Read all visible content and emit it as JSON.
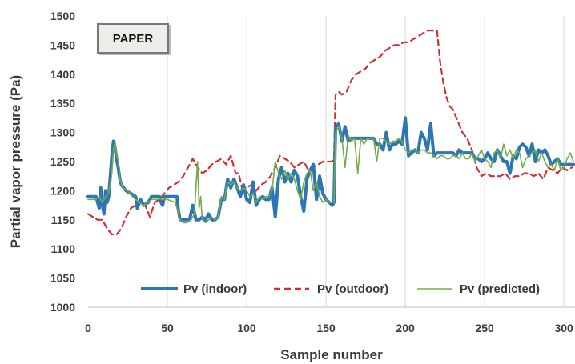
{
  "chart_data": {
    "type": "line",
    "title": "",
    "annotation": "PAPER",
    "xlabel": "Sample number",
    "ylabel": "Partial vapor pressure (Pa)",
    "xlim": [
      0,
      307
    ],
    "ylim": [
      1000,
      1500
    ],
    "xticks": [
      "0",
      "50",
      "100",
      "150",
      "200",
      "250",
      "300"
    ],
    "yticks": [
      "1000",
      "1050",
      "1100",
      "1150",
      "1200",
      "1250",
      "1300",
      "1350",
      "1400",
      "1450",
      "1500"
    ],
    "grid": "vertical",
    "legend": "bottom",
    "series": [
      {
        "name": "Pv (indoor)",
        "color": "#2e75b6",
        "style": "solid-thick",
        "x": [
          0,
          5,
          7,
          8,
          9,
          10,
          11,
          12,
          13,
          14,
          15,
          16,
          17,
          18,
          19,
          20,
          21,
          24,
          27,
          30,
          31,
          33,
          35,
          38,
          40,
          45,
          46,
          47,
          48,
          50,
          55,
          56,
          57,
          58,
          60,
          62,
          64,
          66,
          68,
          70,
          72,
          74,
          76,
          78,
          80,
          82,
          84,
          86,
          88,
          90,
          92,
          94,
          96,
          98,
          100,
          102,
          104,
          106,
          108,
          110,
          112,
          114,
          116,
          118,
          120,
          122,
          124,
          126,
          128,
          130,
          132,
          134,
          136,
          138,
          140,
          142,
          144,
          146,
          148,
          150,
          152,
          154,
          155,
          156,
          158,
          160,
          162,
          164,
          166,
          168,
          170,
          172,
          174,
          176,
          178,
          180,
          182,
          184,
          186,
          188,
          190,
          192,
          194,
          196,
          198,
          200,
          202,
          204,
          206,
          208,
          210,
          212,
          214,
          216,
          218,
          220,
          222,
          224,
          226,
          228,
          230,
          232,
          234,
          236,
          238,
          240,
          242,
          244,
          246,
          248,
          250,
          252,
          254,
          256,
          258,
          260,
          262,
          264,
          266,
          268,
          270,
          272,
          274,
          276,
          278,
          280,
          282,
          284,
          286,
          288,
          290,
          292,
          294,
          296,
          298,
          300,
          302,
          304,
          306
        ],
        "values": [
          1190,
          1190,
          1170,
          1205,
          1175,
          1160,
          1200,
          1180,
          1190,
          1225,
          1260,
          1285,
          1275,
          1255,
          1240,
          1220,
          1210,
          1200,
          1195,
          1190,
          1170,
          1185,
          1175,
          1180,
          1190,
          1190,
          1180,
          1175,
          1190,
          1190,
          1190,
          1190,
          1165,
          1150,
          1150,
          1150,
          1150,
          1175,
          1150,
          1150,
          1155,
          1150,
          1160,
          1150,
          1150,
          1155,
          1185,
          1185,
          1220,
          1205,
          1220,
          1205,
          1190,
          1210,
          1185,
          1180,
          1215,
          1175,
          1185,
          1190,
          1185,
          1185,
          1205,
          1155,
          1220,
          1240,
          1215,
          1230,
          1215,
          1235,
          1225,
          1190,
          1165,
          1220,
          1235,
          1245,
          1185,
          1225,
          1195,
          1185,
          1180,
          1175,
          1180,
          1310,
          1315,
          1285,
          1310,
          1285,
          1290,
          1290,
          1290,
          1290,
          1290,
          1290,
          1290,
          1290,
          1280,
          1280,
          1270,
          1300,
          1270,
          1280,
          1280,
          1285,
          1280,
          1325,
          1260,
          1265,
          1270,
          1265,
          1300,
          1290,
          1270,
          1315,
          1260,
          1265,
          1265,
          1265,
          1265,
          1265,
          1265,
          1260,
          1270,
          1265,
          1265,
          1265,
          1265,
          1255,
          1255,
          1250,
          1255,
          1265,
          1255,
          1250,
          1270,
          1260,
          1250,
          1250,
          1230,
          1260,
          1255,
          1275,
          1280,
          1275,
          1260,
          1280,
          1250,
          1270,
          1265,
          1270,
          1260,
          1245,
          1250,
          1255,
          1245,
          1245,
          1245,
          1245,
          1245
        ]
      },
      {
        "name": "Pv (outdoor)",
        "color": "#d32f2f",
        "style": "dashed",
        "x": [
          0,
          3,
          6,
          9,
          12,
          15,
          18,
          21,
          24,
          27,
          30,
          33,
          36,
          39,
          42,
          45,
          48,
          51,
          54,
          57,
          60,
          63,
          66,
          69,
          72,
          75,
          78,
          81,
          84,
          87,
          90,
          93,
          95,
          97,
          100,
          103,
          106,
          109,
          112,
          115,
          118,
          121,
          124,
          127,
          130,
          133,
          136,
          139,
          142,
          145,
          148,
          151,
          154,
          155,
          156,
          158,
          160,
          163,
          166,
          169,
          172,
          175,
          178,
          181,
          184,
          187,
          190,
          193,
          196,
          199,
          202,
          205,
          208,
          211,
          214,
          217,
          220,
          222,
          224,
          226,
          228,
          230,
          233,
          236,
          239,
          242,
          245,
          248,
          251,
          254,
          257,
          260,
          263,
          266,
          269,
          272,
          275,
          278,
          281,
          284,
          287,
          290,
          293,
          296,
          299,
          302,
          305
        ],
        "values": [
          1160,
          1155,
          1150,
          1150,
          1135,
          1125,
          1125,
          1135,
          1155,
          1170,
          1175,
          1185,
          1175,
          1155,
          1180,
          1185,
          1195,
          1205,
          1210,
          1215,
          1225,
          1240,
          1255,
          1240,
          1230,
          1235,
          1245,
          1250,
          1255,
          1245,
          1260,
          1230,
          1230,
          1205,
          1205,
          1210,
          1200,
          1210,
          1215,
          1225,
          1240,
          1260,
          1255,
          1250,
          1240,
          1245,
          1250,
          1235,
          1240,
          1245,
          1250,
          1250,
          1250,
          1255,
          1365,
          1370,
          1365,
          1370,
          1390,
          1400,
          1405,
          1410,
          1420,
          1425,
          1430,
          1440,
          1445,
          1450,
          1450,
          1455,
          1455,
          1460,
          1465,
          1470,
          1475,
          1475,
          1475,
          1420,
          1385,
          1360,
          1345,
          1340,
          1320,
          1300,
          1290,
          1270,
          1240,
          1225,
          1230,
          1225,
          1225,
          1225,
          1230,
          1220,
          1225,
          1225,
          1230,
          1230,
          1225,
          1230,
          1220,
          1240,
          1235,
          1230,
          1240,
          1235,
          1240
        ]
      },
      {
        "name": "Pv (predicted)",
        "color": "#70ad47",
        "style": "solid-thin",
        "x": [
          0,
          5,
          7,
          9,
          11,
          13,
          15,
          16,
          17,
          18,
          19,
          20,
          22,
          25,
          28,
          30,
          32,
          35,
          38,
          40,
          45,
          50,
          55,
          58,
          60,
          62,
          65,
          67,
          69,
          70,
          71,
          72,
          74,
          76,
          78,
          80,
          82,
          84,
          86,
          88,
          90,
          92,
          94,
          96,
          98,
          100,
          102,
          104,
          106,
          108,
          110,
          112,
          114,
          116,
          118,
          120,
          122,
          124,
          126,
          128,
          130,
          132,
          134,
          136,
          138,
          140,
          142,
          144,
          146,
          148,
          150,
          152,
          154,
          155,
          156,
          158,
          160,
          162,
          164,
          166,
          168,
          170,
          172,
          174,
          176,
          178,
          180,
          182,
          184,
          186,
          188,
          190,
          192,
          194,
          196,
          198,
          200,
          202,
          204,
          206,
          208,
          210,
          212,
          214,
          216,
          218,
          220,
          222,
          224,
          226,
          228,
          230,
          232,
          234,
          236,
          238,
          240,
          242,
          244,
          246,
          248,
          250,
          252,
          254,
          256,
          258,
          260,
          262,
          264,
          266,
          268,
          270,
          272,
          274,
          276,
          278,
          280,
          282,
          284,
          286,
          288,
          290,
          292,
          294,
          296,
          298,
          300,
          302,
          304,
          306
        ],
        "values": [
          1185,
          1185,
          1190,
          1180,
          1190,
          1195,
          1230,
          1270,
          1285,
          1265,
          1250,
          1220,
          1205,
          1200,
          1190,
          1185,
          1180,
          1175,
          1180,
          1185,
          1185,
          1185,
          1180,
          1150,
          1145,
          1145,
          1150,
          1160,
          1250,
          1170,
          1190,
          1150,
          1145,
          1150,
          1155,
          1150,
          1155,
          1190,
          1185,
          1215,
          1210,
          1215,
          1205,
          1200,
          1205,
          1200,
          1190,
          1195,
          1180,
          1190,
          1185,
          1190,
          1190,
          1200,
          1250,
          1230,
          1220,
          1235,
          1220,
          1230,
          1220,
          1200,
          1185,
          1215,
          1230,
          1235,
          1200,
          1215,
          1190,
          1180,
          1185,
          1180,
          1180,
          1180,
          1300,
          1310,
          1290,
          1240,
          1295,
          1285,
          1290,
          1230,
          1290,
          1280,
          1290,
          1290,
          1290,
          1250,
          1290,
          1290,
          1285,
          1280,
          1285,
          1285,
          1290,
          1285,
          1270,
          1265,
          1270,
          1270,
          1265,
          1270,
          1270,
          1265,
          1265,
          1260,
          1255,
          1260,
          1260,
          1255,
          1255,
          1260,
          1260,
          1255,
          1265,
          1255,
          1255,
          1265,
          1250,
          1260,
          1270,
          1255,
          1250,
          1240,
          1265,
          1270,
          1255,
          1280,
          1260,
          1270,
          1255,
          1270,
          1265,
          1240,
          1255,
          1260,
          1265,
          1270,
          1250,
          1265,
          1250,
          1240,
          1245,
          1235,
          1255,
          1235,
          1240,
          1255,
          1265,
          1250
        ]
      }
    ]
  }
}
